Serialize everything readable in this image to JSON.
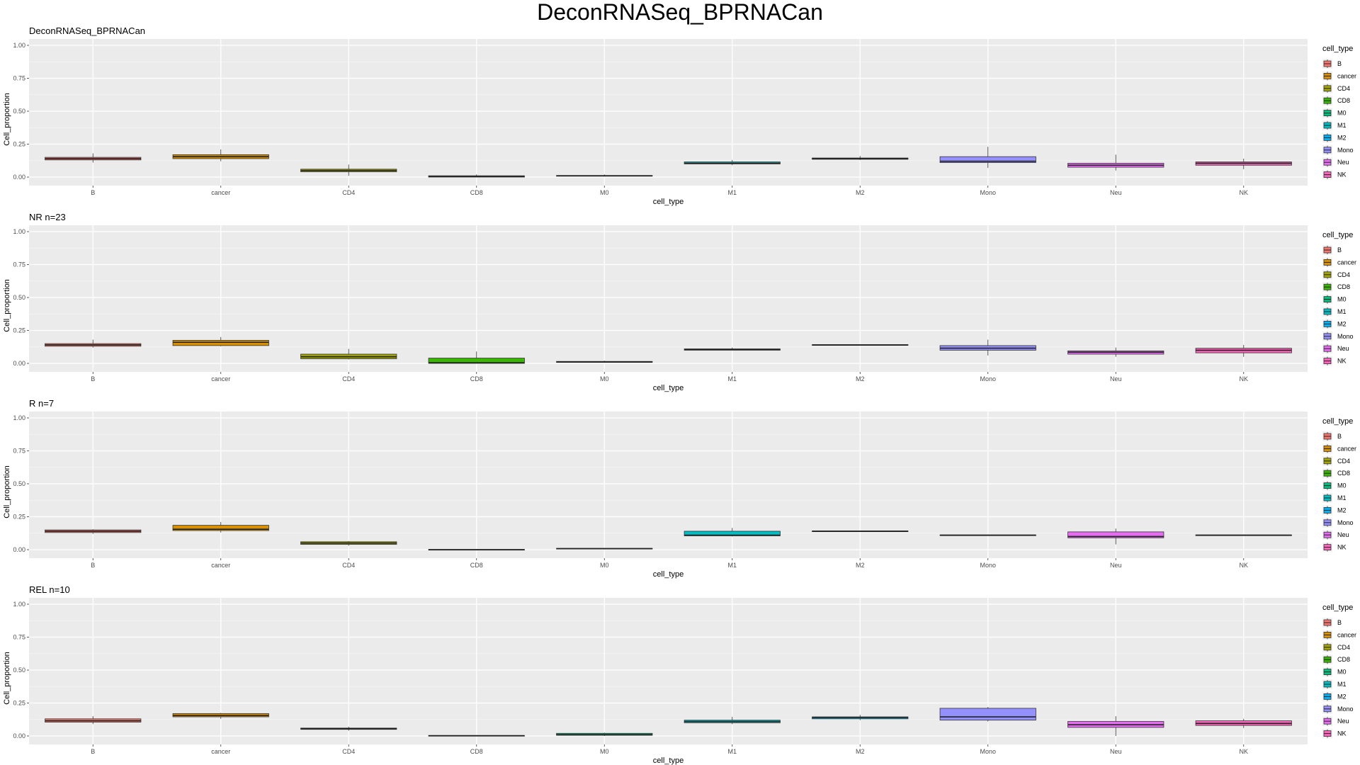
{
  "title": "DeconRNASeq_BPRNACan",
  "chart_data": [
    {
      "type": "boxplot",
      "title": "DeconRNASeq_BPRNACan",
      "xlabel": "cell_type",
      "ylabel": "Cell_proportion",
      "ylim": [
        0,
        1
      ],
      "yticks": [
        "0.00",
        "0.25",
        "0.50",
        "0.75",
        "1.00"
      ],
      "legend_title": "cell_type",
      "legend_position": "right",
      "categories": [
        "B",
        "cancer",
        "CD4",
        "CD8",
        "M0",
        "M1",
        "M2",
        "Mono",
        "Neu",
        "NK"
      ],
      "boxes": [
        {
          "min": 0.11,
          "q1": 0.13,
          "median": 0.14,
          "q3": 0.15,
          "max": 0.18
        },
        {
          "min": 0.12,
          "q1": 0.14,
          "median": 0.155,
          "q3": 0.17,
          "max": 0.21
        },
        {
          "min": 0.01,
          "q1": 0.04,
          "median": 0.05,
          "q3": 0.06,
          "max": 0.095
        },
        {
          "min": 0.0,
          "q1": 0.0,
          "median": 0.005,
          "q3": 0.01,
          "max": 0.02
        },
        {
          "min": 0.005,
          "q1": 0.008,
          "median": 0.01,
          "q3": 0.012,
          "max": 0.02
        },
        {
          "min": 0.09,
          "q1": 0.1,
          "median": 0.105,
          "q3": 0.115,
          "max": 0.13
        },
        {
          "min": 0.13,
          "q1": 0.135,
          "median": 0.14,
          "q3": 0.145,
          "max": 0.16
        },
        {
          "min": 0.07,
          "q1": 0.11,
          "median": 0.12,
          "q3": 0.155,
          "max": 0.23
        },
        {
          "min": 0.05,
          "q1": 0.075,
          "median": 0.09,
          "q3": 0.105,
          "max": 0.17
        },
        {
          "min": 0.06,
          "q1": 0.09,
          "median": 0.105,
          "q3": 0.115,
          "max": 0.14
        }
      ]
    },
    {
      "type": "boxplot",
      "title": "NR n=23",
      "xlabel": "cell_type",
      "ylabel": "Cell_proportion",
      "ylim": [
        0,
        1
      ],
      "yticks": [
        "0.00",
        "0.25",
        "0.50",
        "0.75",
        "1.00"
      ],
      "legend_title": "cell_type",
      "legend_position": "right",
      "categories": [
        "B",
        "cancer",
        "CD4",
        "CD8",
        "M0",
        "M1",
        "M2",
        "Mono",
        "Neu",
        "NK"
      ],
      "boxes": [
        {
          "min": 0.12,
          "q1": 0.13,
          "median": 0.14,
          "q3": 0.15,
          "max": 0.18
        },
        {
          "min": 0.13,
          "q1": 0.135,
          "median": 0.16,
          "q3": 0.175,
          "max": 0.2
        },
        {
          "min": 0.03,
          "q1": 0.035,
          "median": 0.05,
          "q3": 0.07,
          "max": 0.11
        },
        {
          "min": 0.0,
          "q1": 0.0,
          "median": 0.005,
          "q3": 0.04,
          "max": 0.09
        },
        {
          "min": 0.005,
          "q1": 0.008,
          "median": 0.01,
          "q3": 0.015,
          "max": 0.02
        },
        {
          "min": 0.1,
          "q1": 0.1,
          "median": 0.105,
          "q3": 0.11,
          "max": 0.12
        },
        {
          "min": 0.135,
          "q1": 0.138,
          "median": 0.14,
          "q3": 0.142,
          "max": 0.145
        },
        {
          "min": 0.06,
          "q1": 0.1,
          "median": 0.115,
          "q3": 0.135,
          "max": 0.18
        },
        {
          "min": 0.05,
          "q1": 0.07,
          "median": 0.085,
          "q3": 0.095,
          "max": 0.12
        },
        {
          "min": 0.05,
          "q1": 0.08,
          "median": 0.1,
          "q3": 0.115,
          "max": 0.14
        }
      ]
    },
    {
      "type": "boxplot",
      "title": "R n=7",
      "xlabel": "cell_type",
      "ylabel": "Cell_proportion",
      "ylim": [
        0,
        1
      ],
      "yticks": [
        "0.00",
        "0.25",
        "0.50",
        "0.75",
        "1.00"
      ],
      "legend_title": "cell_type",
      "legend_position": "right",
      "categories": [
        "B",
        "cancer",
        "CD4",
        "CD8",
        "M0",
        "M1",
        "M2",
        "Mono",
        "Neu",
        "NK"
      ],
      "boxes": [
        {
          "min": 0.12,
          "q1": 0.13,
          "median": 0.14,
          "q3": 0.15,
          "max": 0.155
        },
        {
          "min": 0.13,
          "q1": 0.145,
          "median": 0.155,
          "q3": 0.185,
          "max": 0.21
        },
        {
          "min": 0.03,
          "q1": 0.04,
          "median": 0.05,
          "q3": 0.06,
          "max": 0.065
        },
        {
          "min": 0.0,
          "q1": 0.0,
          "median": 0.0,
          "q3": 0.002,
          "max": 0.004
        },
        {
          "min": 0.003,
          "q1": 0.005,
          "median": 0.008,
          "q3": 0.01,
          "max": 0.012
        },
        {
          "min": 0.1,
          "q1": 0.105,
          "median": 0.11,
          "q3": 0.14,
          "max": 0.165
        },
        {
          "min": 0.135,
          "q1": 0.138,
          "median": 0.14,
          "q3": 0.142,
          "max": 0.145
        },
        {
          "min": 0.105,
          "q1": 0.107,
          "median": 0.11,
          "q3": 0.112,
          "max": 0.115
        },
        {
          "min": 0.04,
          "q1": 0.09,
          "median": 0.1,
          "q3": 0.135,
          "max": 0.16
        },
        {
          "min": 0.105,
          "q1": 0.108,
          "median": 0.11,
          "q3": 0.112,
          "max": 0.115
        }
      ]
    },
    {
      "type": "boxplot",
      "title": "REL n=10",
      "xlabel": "cell_type",
      "ylabel": "Cell_proportion",
      "ylim": [
        0,
        1
      ],
      "yticks": [
        "0.00",
        "0.25",
        "0.50",
        "0.75",
        "1.00"
      ],
      "legend_title": "cell_type",
      "legend_position": "right",
      "categories": [
        "B",
        "cancer",
        "CD4",
        "CD8",
        "M0",
        "M1",
        "M2",
        "Mono",
        "Neu",
        "NK"
      ],
      "boxes": [
        {
          "min": 0.09,
          "q1": 0.105,
          "median": 0.115,
          "q3": 0.13,
          "max": 0.15
        },
        {
          "min": 0.13,
          "q1": 0.145,
          "median": 0.155,
          "q3": 0.17,
          "max": 0.175
        },
        {
          "min": 0.04,
          "q1": 0.05,
          "median": 0.055,
          "q3": 0.06,
          "max": 0.07
        },
        {
          "min": 0.0,
          "q1": 0.0,
          "median": 0.002,
          "q3": 0.004,
          "max": 0.006
        },
        {
          "min": 0.0,
          "q1": 0.005,
          "median": 0.01,
          "q3": 0.02,
          "max": 0.025
        },
        {
          "min": 0.09,
          "q1": 0.1,
          "median": 0.11,
          "q3": 0.12,
          "max": 0.145
        },
        {
          "min": 0.12,
          "q1": 0.13,
          "median": 0.14,
          "q3": 0.145,
          "max": 0.16
        },
        {
          "min": 0.11,
          "q1": 0.12,
          "median": 0.145,
          "q3": 0.21,
          "max": 0.22
        },
        {
          "min": 0.0,
          "q1": 0.065,
          "median": 0.085,
          "q3": 0.11,
          "max": 0.15
        },
        {
          "min": 0.06,
          "q1": 0.08,
          "median": 0.095,
          "q3": 0.115,
          "max": 0.13
        }
      ]
    }
  ],
  "colors": {
    "B": "#F8766D",
    "cancer": "#D89000",
    "CD4": "#A3A500",
    "CD8": "#39B600",
    "M0": "#00BF7D",
    "M1": "#00BFC4",
    "M2": "#00B0F6",
    "Mono": "#9590FF",
    "Neu": "#E76BF3",
    "NK": "#FF62BC"
  }
}
